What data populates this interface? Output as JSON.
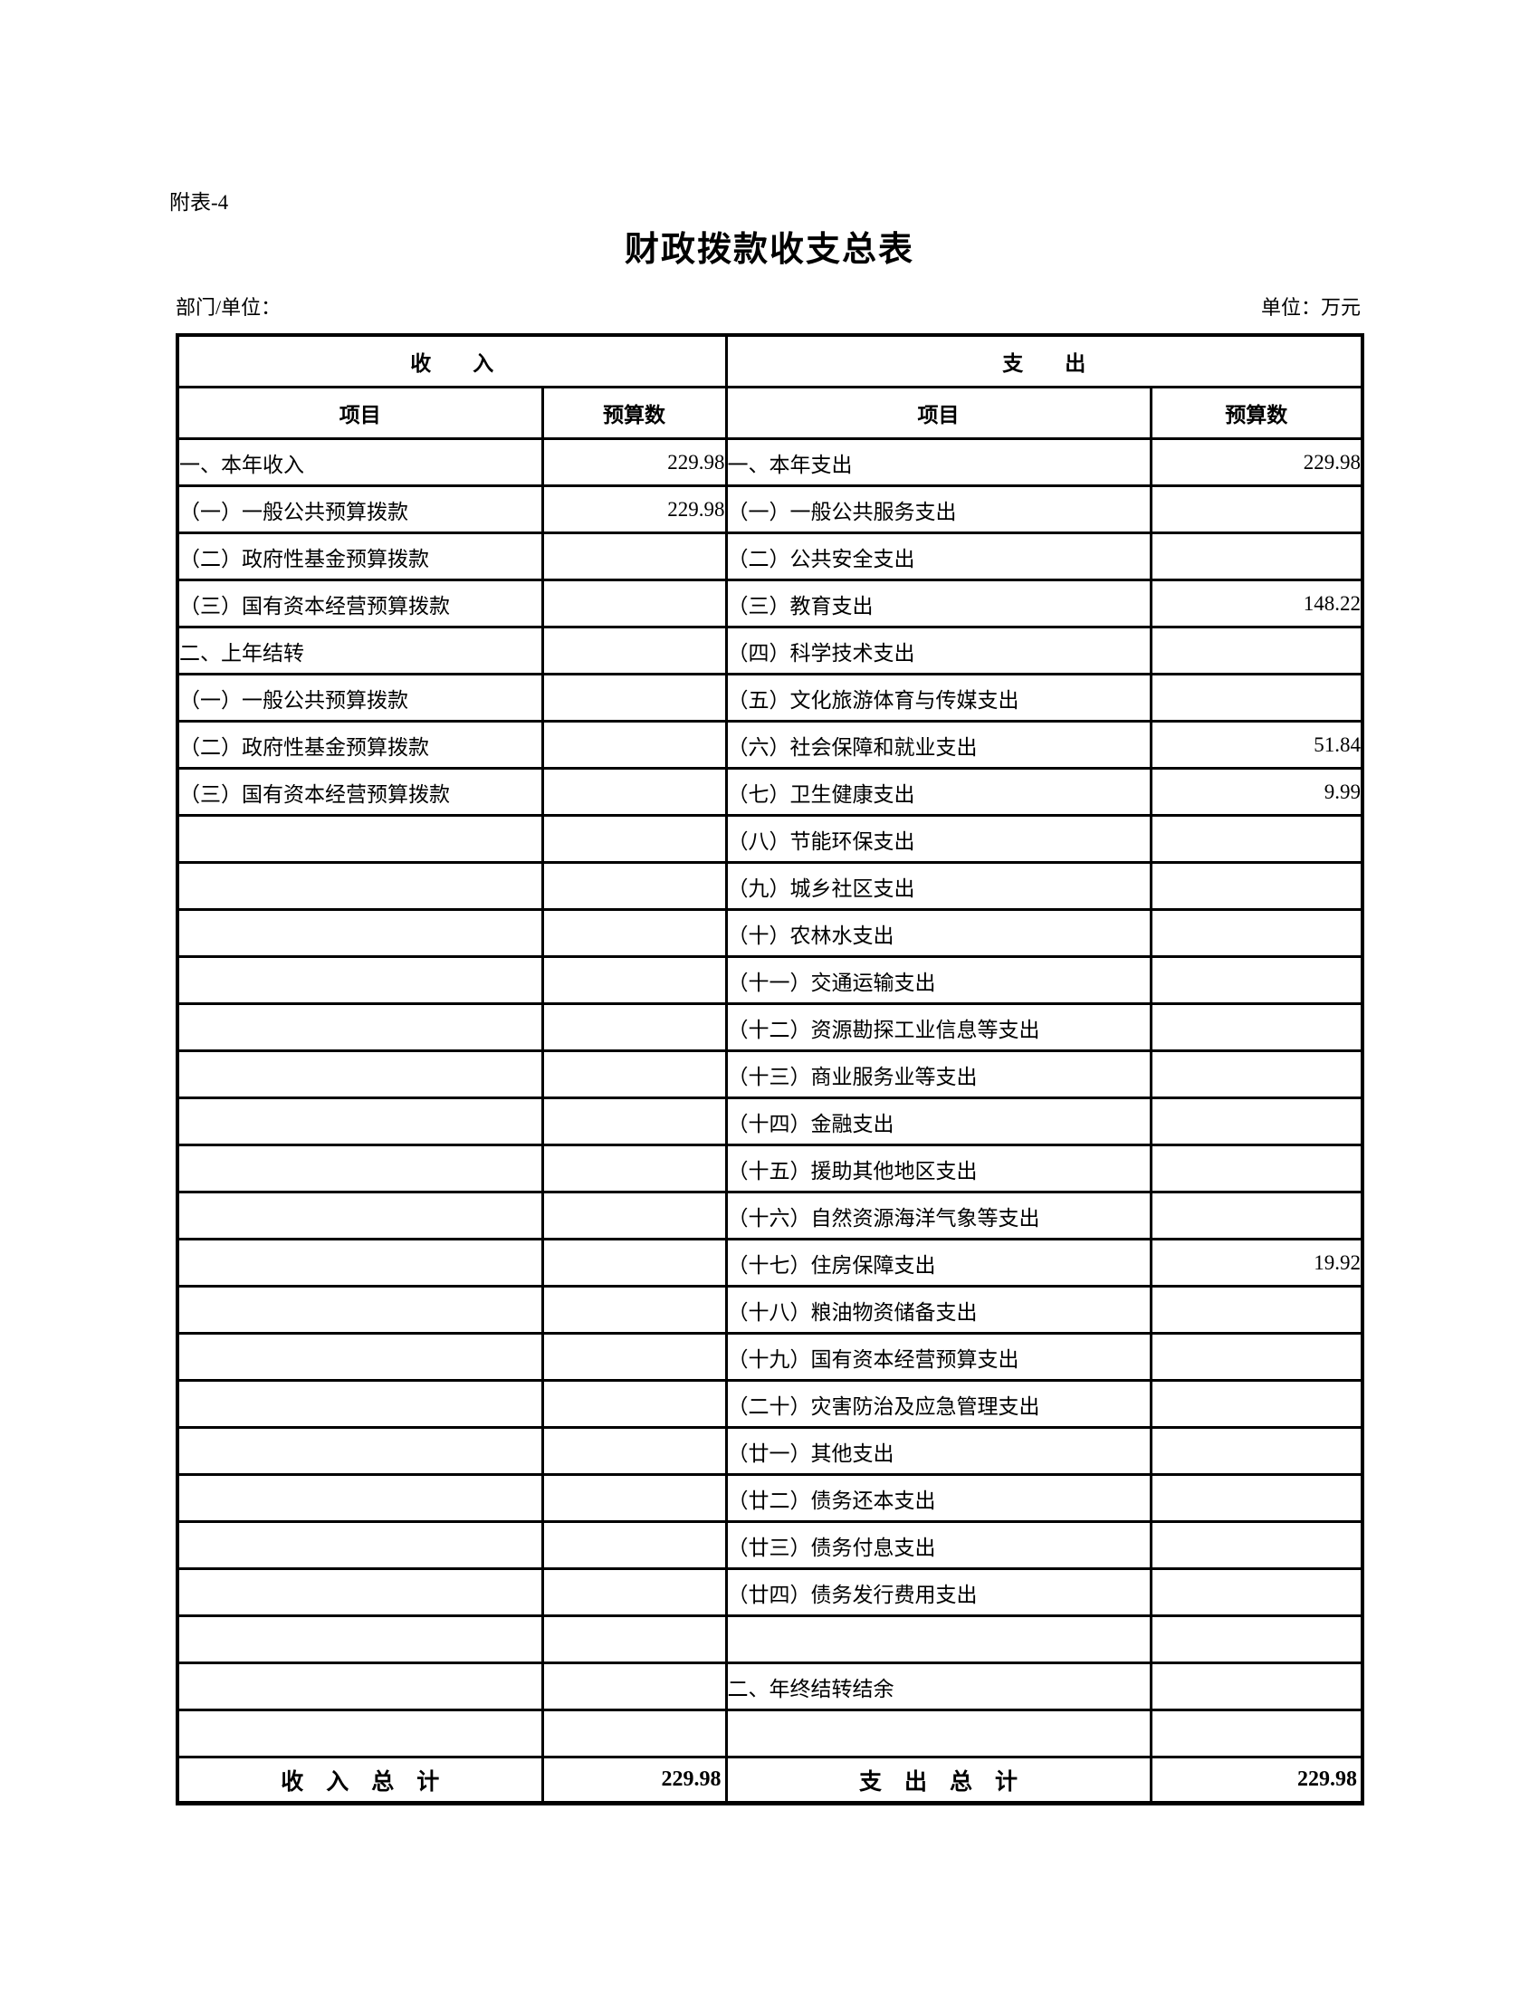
{
  "page": {
    "note": "附表-4",
    "title": "财政拨款收支总表",
    "department_label": "部门/单位：",
    "unit_label": "单位：万元"
  },
  "table": {
    "income_header": "收　　入",
    "expense_header": "支　　出",
    "income_col_item": "项目",
    "income_col_budget": "预算数",
    "expense_col_item": "项目",
    "expense_col_budget": "预算数",
    "rows": [
      {
        "income": {
          "label": "一、本年收入",
          "value": "229.98"
        },
        "expense": {
          "label": "一、本年支出",
          "value": "229.98"
        }
      },
      {
        "income": {
          "label": "（一）一般公共预算拨款",
          "value": "229.98"
        },
        "expense": {
          "label": "（一）一般公共服务支出",
          "value": ""
        }
      },
      {
        "income": {
          "label": "（二）政府性基金预算拨款",
          "value": ""
        },
        "expense": {
          "label": "（二）公共安全支出",
          "value": ""
        }
      },
      {
        "income": {
          "label": "（三）国有资本经营预算拨款",
          "value": ""
        },
        "expense": {
          "label": "（三）教育支出",
          "value": "148.22"
        }
      },
      {
        "income": {
          "label": "二、上年结转",
          "value": ""
        },
        "expense": {
          "label": "（四）科学技术支出",
          "value": ""
        }
      },
      {
        "income": {
          "label": "（一）一般公共预算拨款",
          "value": ""
        },
        "expense": {
          "label": "（五）文化旅游体育与传媒支出",
          "value": ""
        }
      },
      {
        "income": {
          "label": "（二）政府性基金预算拨款",
          "value": ""
        },
        "expense": {
          "label": "（六）社会保障和就业支出",
          "value": "51.84"
        }
      },
      {
        "income": {
          "label": "（三）国有资本经营预算拨款",
          "value": ""
        },
        "expense": {
          "label": "（七）卫生健康支出",
          "value": "9.99"
        }
      },
      {
        "income": {
          "label": "",
          "value": ""
        },
        "expense": {
          "label": "（八）节能环保支出",
          "value": ""
        }
      },
      {
        "income": {
          "label": "",
          "value": ""
        },
        "expense": {
          "label": "（九）城乡社区支出",
          "value": ""
        }
      },
      {
        "income": {
          "label": "",
          "value": ""
        },
        "expense": {
          "label": "（十）农林水支出",
          "value": ""
        }
      },
      {
        "income": {
          "label": "",
          "value": ""
        },
        "expense": {
          "label": "（十一）交通运输支出",
          "value": ""
        }
      },
      {
        "income": {
          "label": "",
          "value": ""
        },
        "expense": {
          "label": "（十二）资源勘探工业信息等支出",
          "value": ""
        }
      },
      {
        "income": {
          "label": "",
          "value": ""
        },
        "expense": {
          "label": "（十三）商业服务业等支出",
          "value": ""
        }
      },
      {
        "income": {
          "label": "",
          "value": ""
        },
        "expense": {
          "label": "（十四）金融支出",
          "value": ""
        }
      },
      {
        "income": {
          "label": "",
          "value": ""
        },
        "expense": {
          "label": "（十五）援助其他地区支出",
          "value": ""
        }
      },
      {
        "income": {
          "label": "",
          "value": ""
        },
        "expense": {
          "label": "（十六）自然资源海洋气象等支出",
          "value": ""
        }
      },
      {
        "income": {
          "label": "",
          "value": ""
        },
        "expense": {
          "label": "（十七）住房保障支出",
          "value": "19.92"
        }
      },
      {
        "income": {
          "label": "",
          "value": ""
        },
        "expense": {
          "label": "（十八）粮油物资储备支出",
          "value": ""
        }
      },
      {
        "income": {
          "label": "",
          "value": ""
        },
        "expense": {
          "label": "（十九）国有资本经营预算支出",
          "value": ""
        }
      },
      {
        "income": {
          "label": "",
          "value": ""
        },
        "expense": {
          "label": "（二十）灾害防治及应急管理支出",
          "value": ""
        }
      },
      {
        "income": {
          "label": "",
          "value": ""
        },
        "expense": {
          "label": "（廿一）其他支出",
          "value": ""
        }
      },
      {
        "income": {
          "label": "",
          "value": ""
        },
        "expense": {
          "label": "（廿二）债务还本支出",
          "value": ""
        }
      },
      {
        "income": {
          "label": "",
          "value": ""
        },
        "expense": {
          "label": "（廿三）债务付息支出",
          "value": ""
        }
      },
      {
        "income": {
          "label": "",
          "value": ""
        },
        "expense": {
          "label": "（廿四）债务发行费用支出",
          "value": ""
        }
      },
      {
        "income": {
          "label": "",
          "value": ""
        },
        "expense": {
          "label": "",
          "value": ""
        }
      },
      {
        "income": {
          "label": "",
          "value": ""
        },
        "expense": {
          "label": "二、年终结转结余",
          "value": ""
        }
      },
      {
        "income": {
          "label": "",
          "value": ""
        },
        "expense": {
          "label": "",
          "value": ""
        }
      }
    ],
    "total": {
      "income_label": "收　入　总　计",
      "income_value": "229.98",
      "expense_label": "支　出　总　计",
      "expense_value": "229.98"
    }
  }
}
